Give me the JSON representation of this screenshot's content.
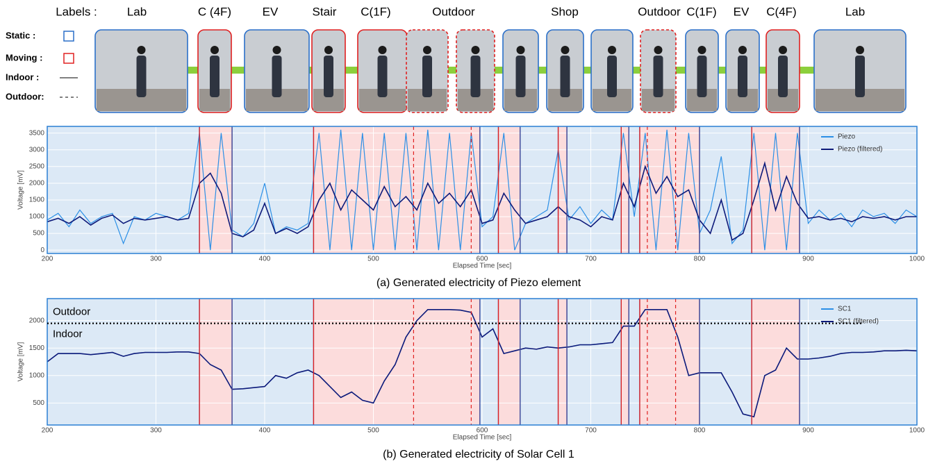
{
  "header": {
    "labels_title": "Labels :",
    "labels": [
      "Lab",
      "C (4F)",
      "EV",
      "Stair",
      "C(1F)",
      "Outdoor",
      "Shop",
      "Outdoor",
      "C(1F)",
      "EV",
      "C(4F)",
      "Lab"
    ],
    "legend": [
      "Static :",
      "Moving :",
      "Indoor :",
      "Outdoor:"
    ]
  },
  "segments": [
    {
      "from": 200,
      "to": 340,
      "state": "static"
    },
    {
      "from": 340,
      "to": 370,
      "state": "moving"
    },
    {
      "from": 370,
      "to": 445,
      "state": "static"
    },
    {
      "from": 445,
      "to": 598,
      "state": "moving"
    },
    {
      "from": 598,
      "to": 615,
      "state": "static"
    },
    {
      "from": 615,
      "to": 635,
      "state": "moving"
    },
    {
      "from": 635,
      "to": 670,
      "state": "static"
    },
    {
      "from": 670,
      "to": 678,
      "state": "moving"
    },
    {
      "from": 678,
      "to": 728,
      "state": "static"
    },
    {
      "from": 728,
      "to": 735,
      "state": "moving"
    },
    {
      "from": 735,
      "to": 745,
      "state": "static"
    },
    {
      "from": 745,
      "to": 800,
      "state": "moving"
    },
    {
      "from": 800,
      "to": 848,
      "state": "static"
    },
    {
      "from": 848,
      "to": 892,
      "state": "moving"
    },
    {
      "from": 892,
      "to": 1000,
      "state": "static"
    }
  ],
  "outdoor_bounds": [
    537,
    590,
    752,
    778
  ],
  "chart_data": [
    {
      "type": "line",
      "caption": "(a) Generated electricity of Piezo element",
      "x_label": "Elapsed Time [sec]",
      "y_label": "Voltage [mV]",
      "xlim": [
        200,
        1000
      ],
      "xticks": [
        200,
        300,
        400,
        500,
        600,
        700,
        800,
        900,
        1000
      ],
      "ylim": [
        -100,
        3700
      ],
      "yticks": [
        0,
        500,
        1000,
        1500,
        2000,
        2500,
        3000,
        3500
      ],
      "grid": true,
      "legend": "upper right",
      "x": [
        200,
        210,
        220,
        230,
        240,
        250,
        260,
        270,
        280,
        290,
        300,
        310,
        320,
        330,
        340,
        350,
        360,
        370,
        380,
        390,
        400,
        410,
        420,
        430,
        440,
        450,
        460,
        470,
        480,
        490,
        500,
        510,
        520,
        530,
        540,
        550,
        560,
        570,
        580,
        590,
        600,
        610,
        620,
        630,
        640,
        650,
        660,
        670,
        680,
        690,
        700,
        710,
        720,
        730,
        740,
        750,
        760,
        770,
        780,
        790,
        800,
        810,
        820,
        830,
        840,
        850,
        860,
        870,
        880,
        890,
        900,
        910,
        920,
        930,
        940,
        950,
        960,
        970,
        980,
        990,
        1000
      ],
      "series": [
        {
          "name": "Piezo",
          "color": "#2b8fe6",
          "values": [
            900,
            1100,
            700,
            1200,
            800,
            1000,
            1100,
            200,
            1000,
            900,
            1100,
            1000,
            900,
            1100,
            3500,
            0,
            3500,
            600,
            400,
            800,
            2000,
            500,
            700,
            600,
            800,
            3500,
            0,
            3600,
            0,
            3500,
            0,
            3500,
            0,
            3500,
            0,
            3600,
            0,
            3500,
            0,
            3500,
            700,
            1000,
            3500,
            0,
            800,
            1000,
            1200,
            3000,
            900,
            1300,
            800,
            1200,
            900,
            3500,
            1000,
            3500,
            0,
            3600,
            0,
            3500,
            500,
            1200,
            2800,
            200,
            600,
            3500,
            0,
            3500,
            0,
            3500,
            800,
            1200,
            900,
            1100,
            700,
            1200,
            1000,
            1100,
            800,
            1200,
            1000
          ]
        },
        {
          "name": "Piezo (filtered)",
          "color": "#0d1a7a",
          "values": [
            850,
            950,
            800,
            1000,
            750,
            950,
            1050,
            800,
            950,
            900,
            950,
            1000,
            900,
            950,
            2000,
            2300,
            1700,
            500,
            400,
            600,
            1400,
            500,
            650,
            500,
            700,
            1500,
            2000,
            1200,
            1800,
            1500,
            1200,
            1900,
            1300,
            1600,
            1200,
            2000,
            1400,
            1700,
            1300,
            1800,
            800,
            900,
            1700,
            1200,
            800,
            900,
            1000,
            1300,
            1000,
            900,
            700,
            1000,
            900,
            2000,
            1300,
            2500,
            1700,
            2200,
            1600,
            1800,
            900,
            500,
            1500,
            300,
            500,
            1500,
            2600,
            1200,
            2200,
            1400,
            950,
            1000,
            900,
            950,
            850,
            1000,
            950,
            1000,
            900,
            1000,
            1000
          ]
        }
      ]
    },
    {
      "type": "line",
      "caption": "(b) Generated electricity of Solar Cell 1",
      "x_label": "Elapsed Time [sec]",
      "y_label": "Voltage [mV]",
      "xlim": [
        200,
        1000
      ],
      "xticks": [
        200,
        300,
        400,
        500,
        600,
        700,
        800,
        900,
        1000
      ],
      "ylim": [
        100,
        2400
      ],
      "yticks": [
        500,
        1000,
        1500,
        2000
      ],
      "grid": true,
      "legend": "upper right",
      "threshold": 1950,
      "threshold_above": "Outdoor",
      "threshold_below": "Indoor",
      "x": [
        200,
        210,
        220,
        230,
        240,
        250,
        260,
        270,
        280,
        290,
        300,
        310,
        320,
        330,
        340,
        350,
        360,
        370,
        380,
        390,
        400,
        410,
        420,
        430,
        440,
        450,
        460,
        470,
        480,
        490,
        500,
        510,
        520,
        530,
        540,
        550,
        560,
        570,
        580,
        590,
        600,
        610,
        620,
        630,
        640,
        650,
        660,
        670,
        680,
        690,
        700,
        710,
        720,
        730,
        740,
        750,
        760,
        770,
        780,
        790,
        800,
        810,
        820,
        830,
        840,
        850,
        860,
        870,
        880,
        890,
        900,
        910,
        920,
        930,
        940,
        950,
        960,
        970,
        980,
        990,
        1000
      ],
      "series": [
        {
          "name": "SC1",
          "color": "#2b8fe6",
          "values": [
            1250,
            1400,
            1400,
            1400,
            1380,
            1400,
            1420,
            1350,
            1400,
            1420,
            1420,
            1420,
            1430,
            1430,
            1400,
            1200,
            1100,
            750,
            760,
            780,
            800,
            1000,
            950,
            1050,
            1100,
            1000,
            800,
            600,
            700,
            550,
            500,
            900,
            1200,
            1700,
            2000,
            2200,
            2200,
            2200,
            2190,
            2150,
            1700,
            1850,
            1400,
            1450,
            1500,
            1480,
            1520,
            1500,
            1520,
            1560,
            1560,
            1580,
            1600,
            1900,
            1900,
            2200,
            2200,
            2200,
            1700,
            1000,
            1050,
            1050,
            1050,
            700,
            300,
            250,
            1000,
            1100,
            1500,
            1300,
            1300,
            1320,
            1350,
            1400,
            1420,
            1420,
            1430,
            1450,
            1450,
            1460,
            1450
          ]
        },
        {
          "name": "SC1 (filtered)",
          "color": "#0d1a7a",
          "values": [
            1250,
            1400,
            1400,
            1400,
            1380,
            1400,
            1420,
            1350,
            1400,
            1420,
            1420,
            1420,
            1430,
            1430,
            1400,
            1200,
            1100,
            750,
            760,
            780,
            800,
            1000,
            950,
            1050,
            1100,
            1000,
            800,
            600,
            700,
            550,
            500,
            900,
            1200,
            1700,
            2000,
            2200,
            2200,
            2200,
            2190,
            2150,
            1700,
            1850,
            1400,
            1450,
            1500,
            1480,
            1520,
            1500,
            1520,
            1560,
            1560,
            1580,
            1600,
            1900,
            1900,
            2200,
            2200,
            2200,
            1700,
            1000,
            1050,
            1050,
            1050,
            700,
            300,
            250,
            1000,
            1100,
            1500,
            1300,
            1300,
            1320,
            1350,
            1400,
            1420,
            1420,
            1430,
            1450,
            1450,
            1460,
            1450
          ]
        }
      ]
    }
  ]
}
